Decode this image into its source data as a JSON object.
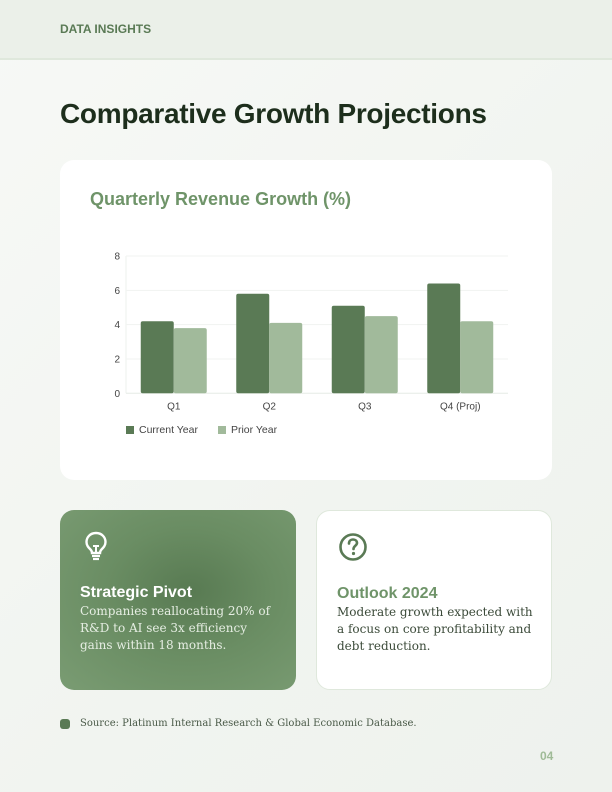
{
  "header": {
    "section_label": "DATA INSIGHTS"
  },
  "page": {
    "title": "Comparative Growth Projections",
    "page_number": "04"
  },
  "chart_card": {
    "title": "Quarterly Revenue Growth (%)",
    "legend": [
      {
        "label": "Current Year",
        "color": "#5a7a55"
      },
      {
        "label": "Prior Year",
        "color": "#a1ba9b"
      }
    ]
  },
  "chart_data": {
    "type": "bar",
    "title": "Quarterly Revenue Growth (%)",
    "categories": [
      "Q1",
      "Q2",
      "Q3",
      "Q4 (Proj)"
    ],
    "series": [
      {
        "name": "Current Year",
        "values": [
          4.2,
          5.8,
          5.1,
          6.4
        ],
        "color": "#5a7a55"
      },
      {
        "name": "Prior Year",
        "values": [
          3.8,
          4.1,
          4.5,
          4.2
        ],
        "color": "#a1ba9b"
      }
    ],
    "xlabel": "",
    "ylabel": "",
    "ylim": [
      0,
      8
    ],
    "yticks": [
      0,
      2,
      4,
      6,
      8
    ],
    "grid": true,
    "legend_position": "bottom-left"
  },
  "cards": [
    {
      "icon": "lightbulb-icon",
      "title": "Strategic Pivot",
      "body": "Companies reallocating 20% of R&D to AI see 3x efficiency gains within 18 months."
    },
    {
      "icon": "question-circle-icon",
      "title": "Outlook 2024",
      "body": "Moderate growth expected with a focus on core profitability and debt reduction."
    }
  ],
  "footer": {
    "source": "Source: Platinum Internal Research & Global Economic Database."
  }
}
